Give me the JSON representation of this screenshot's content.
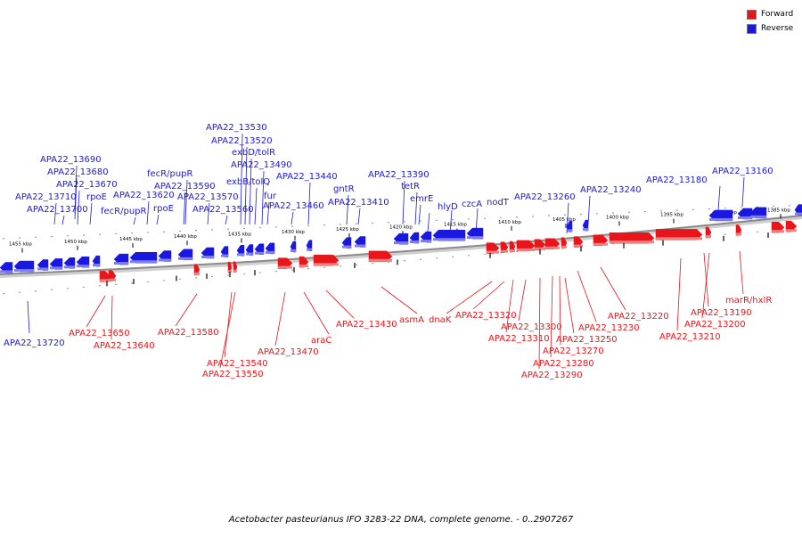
{
  "colors": {
    "forward": "#e8151b",
    "reverse": "#1a18e0",
    "ticks": "#000000",
    "backbone": "#8a8a8a"
  },
  "legend": {
    "forward_label": "Forward",
    "reverse_label": "Reverse"
  },
  "caption": "Acetobacter pasteurianus IFO 3283-22 DNA, complete genome. - 0..2907267",
  "scale_labels": [
    "1455 kbp",
    "1450 kbp",
    "1445 kbp",
    "1440 kbp",
    "1435 kbp",
    "1430 kbp",
    "1425 kbp",
    "1420 kbp",
    "1415 kbp",
    "1410 kbp",
    "1405 kbp",
    "1400 kbp",
    "1395 kbp",
    "1390 kbp",
    "1385 kbp"
  ],
  "reverse_labels": [
    "APA22_13690",
    "APA22_13680",
    "APA22_13670",
    "APA22_13710",
    "APA22_13700",
    "rpoE",
    "APA22_13620",
    "fecR/pupR",
    "fecR/pupR",
    "APA22_13590",
    "rpoE",
    "APA22_13570",
    "APA22_13560",
    "APA22_13530",
    "APA22_13520",
    "exbD/tolR",
    "APA22_13490",
    "exbB/tolQ",
    "fur",
    "APA22_13460",
    "APA22_13440",
    "gntR",
    "APA22_13410",
    "APA22_13390",
    "tetR",
    "emrE",
    "hlyD",
    "czcA",
    "nodT",
    "APA22_13260",
    "APA22_13240",
    "APA22_13180",
    "APA22_13160",
    "APA22_13720"
  ],
  "forward_labels": [
    "APA22_13650",
    "APA22_13640",
    "APA22_13580",
    "APA22_13540",
    "APA22_13550",
    "APA22_13470",
    "araC",
    "APA22_13430",
    "asmA",
    "dnaK",
    "APA22_13320",
    "APA22_13300",
    "APA22_13310",
    "APA22_13270",
    "APA22_13280",
    "APA22_13290",
    "APA22_13250",
    "APA22_13230",
    "APA22_13220",
    "APA22_13190",
    "APA22_13200",
    "APA22_13210",
    "marR/hxlR"
  ]
}
